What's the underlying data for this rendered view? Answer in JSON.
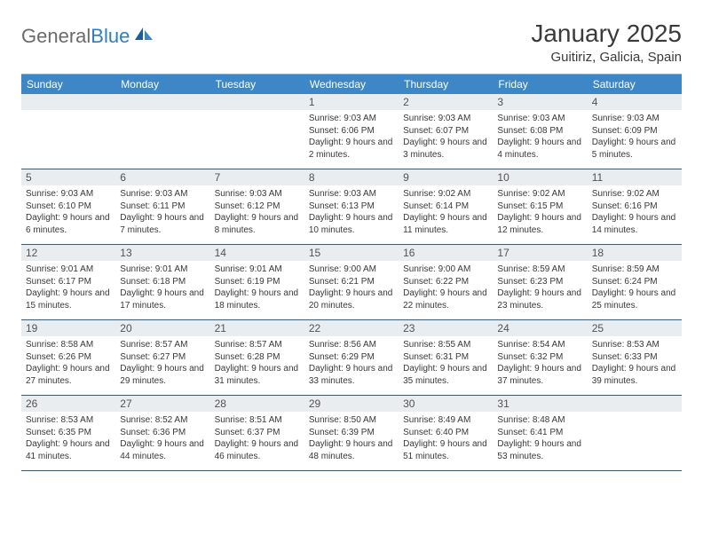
{
  "logo": {
    "text_general": "General",
    "text_blue": "Blue"
  },
  "title": "January 2025",
  "location": "Guitiriz, Galicia, Spain",
  "colors": {
    "header_bar": "#3d87c7",
    "header_text": "#ffffff",
    "daynum_bg": "#e9edef",
    "week_border": "#2c5d84",
    "logo_gray": "#6b6b6b",
    "logo_blue": "#2f7fbf"
  },
  "days_of_week": [
    "Sunday",
    "Monday",
    "Tuesday",
    "Wednesday",
    "Thursday",
    "Friday",
    "Saturday"
  ],
  "weeks": [
    [
      {
        "n": "",
        "sr": "",
        "ss": "",
        "dl": ""
      },
      {
        "n": "",
        "sr": "",
        "ss": "",
        "dl": ""
      },
      {
        "n": "",
        "sr": "",
        "ss": "",
        "dl": ""
      },
      {
        "n": "1",
        "sr": "Sunrise: 9:03 AM",
        "ss": "Sunset: 6:06 PM",
        "dl": "Daylight: 9 hours and 2 minutes."
      },
      {
        "n": "2",
        "sr": "Sunrise: 9:03 AM",
        "ss": "Sunset: 6:07 PM",
        "dl": "Daylight: 9 hours and 3 minutes."
      },
      {
        "n": "3",
        "sr": "Sunrise: 9:03 AM",
        "ss": "Sunset: 6:08 PM",
        "dl": "Daylight: 9 hours and 4 minutes."
      },
      {
        "n": "4",
        "sr": "Sunrise: 9:03 AM",
        "ss": "Sunset: 6:09 PM",
        "dl": "Daylight: 9 hours and 5 minutes."
      }
    ],
    [
      {
        "n": "5",
        "sr": "Sunrise: 9:03 AM",
        "ss": "Sunset: 6:10 PM",
        "dl": "Daylight: 9 hours and 6 minutes."
      },
      {
        "n": "6",
        "sr": "Sunrise: 9:03 AM",
        "ss": "Sunset: 6:11 PM",
        "dl": "Daylight: 9 hours and 7 minutes."
      },
      {
        "n": "7",
        "sr": "Sunrise: 9:03 AM",
        "ss": "Sunset: 6:12 PM",
        "dl": "Daylight: 9 hours and 8 minutes."
      },
      {
        "n": "8",
        "sr": "Sunrise: 9:03 AM",
        "ss": "Sunset: 6:13 PM",
        "dl": "Daylight: 9 hours and 10 minutes."
      },
      {
        "n": "9",
        "sr": "Sunrise: 9:02 AM",
        "ss": "Sunset: 6:14 PM",
        "dl": "Daylight: 9 hours and 11 minutes."
      },
      {
        "n": "10",
        "sr": "Sunrise: 9:02 AM",
        "ss": "Sunset: 6:15 PM",
        "dl": "Daylight: 9 hours and 12 minutes."
      },
      {
        "n": "11",
        "sr": "Sunrise: 9:02 AM",
        "ss": "Sunset: 6:16 PM",
        "dl": "Daylight: 9 hours and 14 minutes."
      }
    ],
    [
      {
        "n": "12",
        "sr": "Sunrise: 9:01 AM",
        "ss": "Sunset: 6:17 PM",
        "dl": "Daylight: 9 hours and 15 minutes."
      },
      {
        "n": "13",
        "sr": "Sunrise: 9:01 AM",
        "ss": "Sunset: 6:18 PM",
        "dl": "Daylight: 9 hours and 17 minutes."
      },
      {
        "n": "14",
        "sr": "Sunrise: 9:01 AM",
        "ss": "Sunset: 6:19 PM",
        "dl": "Daylight: 9 hours and 18 minutes."
      },
      {
        "n": "15",
        "sr": "Sunrise: 9:00 AM",
        "ss": "Sunset: 6:21 PM",
        "dl": "Daylight: 9 hours and 20 minutes."
      },
      {
        "n": "16",
        "sr": "Sunrise: 9:00 AM",
        "ss": "Sunset: 6:22 PM",
        "dl": "Daylight: 9 hours and 22 minutes."
      },
      {
        "n": "17",
        "sr": "Sunrise: 8:59 AM",
        "ss": "Sunset: 6:23 PM",
        "dl": "Daylight: 9 hours and 23 minutes."
      },
      {
        "n": "18",
        "sr": "Sunrise: 8:59 AM",
        "ss": "Sunset: 6:24 PM",
        "dl": "Daylight: 9 hours and 25 minutes."
      }
    ],
    [
      {
        "n": "19",
        "sr": "Sunrise: 8:58 AM",
        "ss": "Sunset: 6:26 PM",
        "dl": "Daylight: 9 hours and 27 minutes."
      },
      {
        "n": "20",
        "sr": "Sunrise: 8:57 AM",
        "ss": "Sunset: 6:27 PM",
        "dl": "Daylight: 9 hours and 29 minutes."
      },
      {
        "n": "21",
        "sr": "Sunrise: 8:57 AM",
        "ss": "Sunset: 6:28 PM",
        "dl": "Daylight: 9 hours and 31 minutes."
      },
      {
        "n": "22",
        "sr": "Sunrise: 8:56 AM",
        "ss": "Sunset: 6:29 PM",
        "dl": "Daylight: 9 hours and 33 minutes."
      },
      {
        "n": "23",
        "sr": "Sunrise: 8:55 AM",
        "ss": "Sunset: 6:31 PM",
        "dl": "Daylight: 9 hours and 35 minutes."
      },
      {
        "n": "24",
        "sr": "Sunrise: 8:54 AM",
        "ss": "Sunset: 6:32 PM",
        "dl": "Daylight: 9 hours and 37 minutes."
      },
      {
        "n": "25",
        "sr": "Sunrise: 8:53 AM",
        "ss": "Sunset: 6:33 PM",
        "dl": "Daylight: 9 hours and 39 minutes."
      }
    ],
    [
      {
        "n": "26",
        "sr": "Sunrise: 8:53 AM",
        "ss": "Sunset: 6:35 PM",
        "dl": "Daylight: 9 hours and 41 minutes."
      },
      {
        "n": "27",
        "sr": "Sunrise: 8:52 AM",
        "ss": "Sunset: 6:36 PM",
        "dl": "Daylight: 9 hours and 44 minutes."
      },
      {
        "n": "28",
        "sr": "Sunrise: 8:51 AM",
        "ss": "Sunset: 6:37 PM",
        "dl": "Daylight: 9 hours and 46 minutes."
      },
      {
        "n": "29",
        "sr": "Sunrise: 8:50 AM",
        "ss": "Sunset: 6:39 PM",
        "dl": "Daylight: 9 hours and 48 minutes."
      },
      {
        "n": "30",
        "sr": "Sunrise: 8:49 AM",
        "ss": "Sunset: 6:40 PM",
        "dl": "Daylight: 9 hours and 51 minutes."
      },
      {
        "n": "31",
        "sr": "Sunrise: 8:48 AM",
        "ss": "Sunset: 6:41 PM",
        "dl": "Daylight: 9 hours and 53 minutes."
      },
      {
        "n": "",
        "sr": "",
        "ss": "",
        "dl": ""
      }
    ]
  ]
}
